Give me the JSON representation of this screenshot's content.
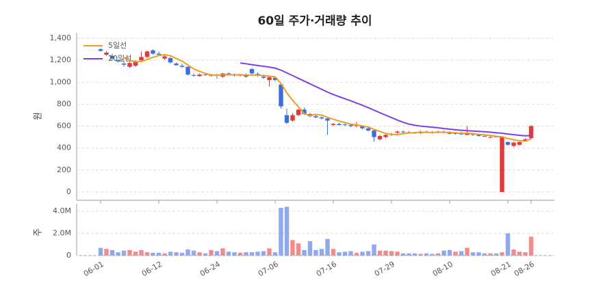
{
  "chart_data": [
    {
      "type": "candlestick",
      "title": "60일 주가·거래량 추이",
      "y_label": "원",
      "categories": [
        "06-01",
        null,
        null,
        null,
        null,
        null,
        null,
        null,
        null,
        null,
        "06-12",
        null,
        null,
        null,
        null,
        null,
        null,
        null,
        null,
        null,
        "06-24",
        null,
        null,
        null,
        null,
        null,
        null,
        null,
        null,
        null,
        "07-06",
        null,
        null,
        null,
        null,
        null,
        null,
        null,
        null,
        null,
        "07-16",
        null,
        null,
        null,
        null,
        null,
        null,
        null,
        null,
        null,
        "07-29",
        null,
        null,
        null,
        null,
        null,
        null,
        null,
        null,
        null,
        "08-10",
        null,
        null,
        null,
        null,
        null,
        null,
        null,
        null,
        null,
        "08-21",
        null,
        null,
        null,
        "08-26"
      ],
      "open": [
        1300,
        1250,
        1240,
        1200,
        1170,
        1140,
        1150,
        1200,
        1230,
        1290,
        1260,
        1215,
        1220,
        1170,
        1150,
        1140,
        1065,
        1055,
        1070,
        1060,
        1065,
        1050,
        1080,
        1070,
        1060,
        1070,
        1120,
        1075,
        1050,
        1020,
        1040,
        980,
        700,
        650,
        700,
        750,
        710,
        690,
        680,
        670,
        610,
        620,
        615,
        610,
        600,
        600,
        580,
        560,
        480,
        500,
        520,
        540,
        550,
        545,
        540,
        535,
        550,
        545,
        540,
        550,
        540,
        530,
        535,
        520,
        530,
        520,
        510,
        500,
        505,
        0,
        455,
        420,
        430,
        470,
        490
      ],
      "high": [
        1310,
        1285,
        1260,
        1210,
        1195,
        1185,
        1200,
        1280,
        1290,
        1300,
        1280,
        1245,
        1230,
        1180,
        1170,
        1145,
        1080,
        1080,
        1085,
        1075,
        1080,
        1085,
        1090,
        1080,
        1075,
        1080,
        1130,
        1090,
        1070,
        1060,
        1050,
        990,
        760,
        720,
        760,
        770,
        720,
        700,
        690,
        680,
        630,
        630,
        625,
        620,
        640,
        610,
        600,
        570,
        520,
        530,
        540,
        560,
        560,
        555,
        550,
        560,
        560,
        555,
        560,
        560,
        555,
        545,
        550,
        600,
        540,
        530,
        520,
        510,
        510,
        505,
        460,
        460,
        470,
        490,
        610
      ],
      "low": [
        1280,
        1240,
        1200,
        1180,
        1140,
        1130,
        1140,
        1190,
        1220,
        1250,
        1240,
        1205,
        1170,
        1150,
        1130,
        1060,
        1050,
        1050,
        1060,
        1050,
        1030,
        1040,
        1060,
        1050,
        1050,
        1040,
        1070,
        1050,
        1030,
        960,
        1010,
        760,
        620,
        640,
        690,
        700,
        680,
        670,
        660,
        520,
        600,
        605,
        600,
        590,
        590,
        570,
        550,
        460,
        470,
        490,
        510,
        530,
        535,
        535,
        530,
        530,
        540,
        530,
        535,
        535,
        525,
        520,
        520,
        515,
        510,
        505,
        500,
        490,
        495,
        0,
        420,
        410,
        420,
        460,
        480
      ],
      "close": [
        1285,
        1270,
        1215,
        1190,
        1160,
        1175,
        1190,
        1230,
        1280,
        1260,
        1250,
        1235,
        1180,
        1155,
        1140,
        1070,
        1060,
        1070,
        1065,
        1065,
        1060,
        1080,
        1070,
        1060,
        1070,
        1050,
        1080,
        1060,
        1040,
        1045,
        1020,
        780,
        630,
        700,
        750,
        710,
        690,
        680,
        670,
        650,
        620,
        610,
        610,
        600,
        610,
        580,
        560,
        500,
        510,
        520,
        530,
        550,
        545,
        540,
        535,
        550,
        545,
        540,
        550,
        540,
        530,
        535,
        525,
        540,
        520,
        510,
        505,
        500,
        500,
        500,
        430,
        450,
        455,
        480,
        600
      ],
      "up_color": "#e03a3a",
      "down_color": "#3b6fe0",
      "series": [
        {
          "name": "5일선",
          "color": "#f29a1f",
          "values": [
            null,
            null,
            null,
            null,
            1224,
            1202,
            1186,
            1189,
            1207,
            1227,
            1242,
            1251,
            1241,
            1216,
            1192,
            1156,
            1121,
            1099,
            1081,
            1066,
            1064,
            1068,
            1068,
            1067,
            1068,
            1066,
            1066,
            1064,
            1060,
            1055,
            1049,
            989,
            903,
            835,
            776,
            714,
            696,
            706,
            700,
            680,
            662,
            646,
            632,
            618,
            610,
            602,
            592,
            570,
            552,
            534,
            524,
            522,
            531,
            537,
            540,
            544,
            543,
            542,
            544,
            545,
            541,
            539,
            536,
            534,
            530,
            526,
            520,
            515,
            507,
            503,
            487,
            476,
            467,
            463,
            483
          ]
        },
        {
          "name": "20일선",
          "color": "#7b3fe4",
          "values": [
            null,
            null,
            null,
            null,
            null,
            null,
            null,
            null,
            null,
            null,
            null,
            null,
            null,
            null,
            null,
            null,
            null,
            null,
            null,
            null,
            null,
            null,
            null,
            null,
            1175,
            1168,
            1160,
            1152,
            1145,
            1138,
            1128,
            1110,
            1085,
            1060,
            1035,
            1010,
            985,
            960,
            935,
            910,
            888,
            868,
            850,
            830,
            810,
            790,
            768,
            745,
            722,
            700,
            678,
            655,
            635,
            618,
            608,
            600,
            595,
            590,
            585,
            578,
            572,
            567,
            562,
            558,
            555,
            552,
            548,
            545,
            540,
            535,
            528,
            522,
            516,
            512,
            515
          ]
        }
      ],
      "ylim": [
        -75,
        1450
      ],
      "yticks": [
        0,
        200,
        400,
        600,
        800,
        {
          "value": 1000,
          "label": "1,000"
        },
        {
          "value": 1200,
          "label": "1,200"
        },
        {
          "value": 1400,
          "label": "1,400"
        }
      ],
      "grid": true,
      "legend": "upper left"
    },
    {
      "type": "bar",
      "y_label": "주",
      "values": [
        700000,
        600000,
        500000,
        300000,
        450000,
        500000,
        350000,
        500000,
        300000,
        250000,
        250000,
        200000,
        350000,
        300000,
        250000,
        550000,
        450000,
        300000,
        200000,
        500000,
        400000,
        650000,
        350000,
        300000,
        250000,
        300000,
        300000,
        350000,
        400000,
        650000,
        300000,
        4300000,
        4400000,
        1400000,
        1100000,
        500000,
        1300000,
        500000,
        600000,
        1500000,
        600000,
        300000,
        350000,
        400000,
        250000,
        350000,
        400000,
        1000000,
        450000,
        450000,
        400000,
        350000,
        200000,
        200000,
        200000,
        150000,
        200000,
        150000,
        200000,
        450000,
        500000,
        350000,
        400000,
        700000,
        300000,
        300000,
        200000,
        200000,
        200000,
        300000,
        2000000,
        550000,
        350000,
        300000,
        1700000
      ],
      "up_color": "#f28b8b",
      "down_color": "#8fa9ee",
      "ylim": [
        0,
        4680000
      ],
      "yticks": [
        0,
        {
          "value": 2000000,
          "label": "2.0M"
        },
        {
          "value": 4000000,
          "label": "4.0M"
        }
      ],
      "grid": true
    }
  ]
}
